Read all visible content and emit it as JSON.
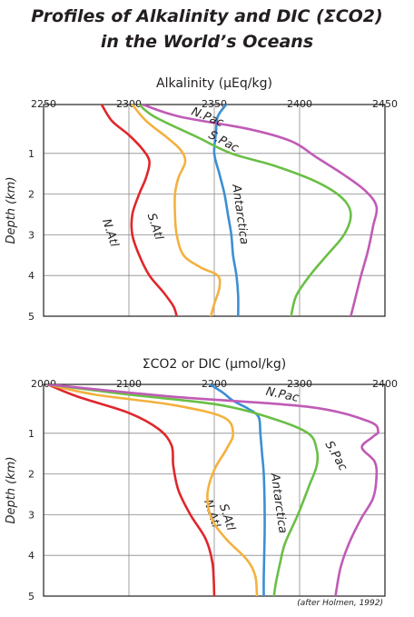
{
  "title_line1": "Profiles of Alkalinity and DIC (ΣCO2)",
  "title_line2": "in the World’s Oceans",
  "credit": "(after Holmen, 1992)",
  "chart_data": [
    {
      "type": "line",
      "title": "Alkalinity (µEq/kg)",
      "xlabel": "Alkalinity (µEq/kg)",
      "ylabel": "Depth (km)",
      "xlim": [
        2250,
        2450
      ],
      "ylim": [
        0,
        5
      ],
      "x_axis_position": "top",
      "y_inverted": true,
      "grid": true,
      "xticks": [
        2250,
        2300,
        2350,
        2400,
        2450
      ],
      "yticks": [
        1,
        2,
        3,
        4,
        5
      ],
      "series": [
        {
          "name": "N.Atl",
          "color": "#e0262b",
          "points": [
            [
              2284,
              -0.2
            ],
            [
              2290,
              0.2
            ],
            [
              2300,
              0.55
            ],
            [
              2308,
              0.9
            ],
            [
              2312,
              1.2
            ],
            [
              2310,
              1.6
            ],
            [
              2306,
              2.0
            ],
            [
              2302,
              2.5
            ],
            [
              2302,
              3.0
            ],
            [
              2306,
              3.5
            ],
            [
              2312,
              4.0
            ],
            [
              2320,
              4.4
            ],
            [
              2326,
              4.75
            ],
            [
              2328,
              5.0
            ]
          ]
        },
        {
          "name": "S.Atl",
          "color": "#f3b13e",
          "points": [
            [
              2302,
              -0.2
            ],
            [
              2310,
              0.2
            ],
            [
              2322,
              0.6
            ],
            [
              2330,
              0.9
            ],
            [
              2333,
              1.2
            ],
            [
              2329,
              1.6
            ],
            [
              2327,
              2.0
            ],
            [
              2327,
              2.5
            ],
            [
              2328,
              3.0
            ],
            [
              2332,
              3.5
            ],
            [
              2342,
              3.8
            ],
            [
              2352,
              4.0
            ],
            [
              2353,
              4.3
            ],
            [
              2350,
              4.7
            ],
            [
              2348,
              5.0
            ]
          ]
        },
        {
          "name": "Antarctica",
          "color": "#3b8fd4",
          "points": [
            [
              2357,
              -0.2
            ],
            [
              2352,
              0.1
            ],
            [
              2351,
              0.5
            ],
            [
              2350,
              1.0
            ],
            [
              2353,
              1.5
            ],
            [
              2356,
              2.0
            ],
            [
              2358,
              2.5
            ],
            [
              2360,
              3.0
            ],
            [
              2361,
              3.5
            ],
            [
              2363,
              4.0
            ],
            [
              2364,
              4.5
            ],
            [
              2364,
              5.0
            ]
          ]
        },
        {
          "name": "S.Pac",
          "color": "#6abf45",
          "points": [
            [
              2306,
              -0.2
            ],
            [
              2315,
              0.1
            ],
            [
              2340,
              0.6
            ],
            [
              2360,
              1.0
            ],
            [
              2385,
              1.3
            ],
            [
              2410,
              1.7
            ],
            [
              2425,
              2.1
            ],
            [
              2430,
              2.5
            ],
            [
              2426,
              3.0
            ],
            [
              2416,
              3.5
            ],
            [
              2406,
              4.0
            ],
            [
              2398,
              4.5
            ],
            [
              2395,
              5.0
            ]
          ]
        },
        {
          "name": "N.Pac",
          "color": "#c05bb6",
          "points": [
            [
              2308,
              -0.2
            ],
            [
              2330,
              0.1
            ],
            [
              2370,
              0.4
            ],
            [
              2395,
              0.7
            ],
            [
              2410,
              1.1
            ],
            [
              2425,
              1.5
            ],
            [
              2438,
              1.9
            ],
            [
              2445,
              2.3
            ],
            [
              2443,
              2.8
            ],
            [
              2440,
              3.4
            ],
            [
              2436,
              4.0
            ],
            [
              2433,
              4.5
            ],
            [
              2430,
              5.0
            ]
          ]
        }
      ]
    },
    {
      "type": "line",
      "title": "ΣCO2 or DIC (µmol/kg)",
      "xlabel": "ΣCO2 or DIC (µmol/kg)",
      "ylabel": "Depth (km)",
      "xlim": [
        2000,
        2400
      ],
      "ylim": [
        0,
        5
      ],
      "x_axis_position": "top",
      "y_inverted": true,
      "grid": true,
      "xticks": [
        2000,
        2100,
        2200,
        2300,
        2400
      ],
      "yticks": [
        1,
        2,
        3,
        4,
        5
      ],
      "series": [
        {
          "name": "N.Atl",
          "color": "#e0262b",
          "points": [
            [
              2005,
              -0.2
            ],
            [
              2040,
              0.1
            ],
            [
              2100,
              0.5
            ],
            [
              2135,
              0.9
            ],
            [
              2150,
              1.3
            ],
            [
              2152,
              1.8
            ],
            [
              2158,
              2.4
            ],
            [
              2172,
              3.0
            ],
            [
              2190,
              3.6
            ],
            [
              2198,
              4.2
            ],
            [
              2200,
              5.0
            ]
          ]
        },
        {
          "name": "S.Atl",
          "color": "#f3b13e",
          "points": [
            [
              2005,
              -0.2
            ],
            [
              2060,
              0.05
            ],
            [
              2150,
              0.3
            ],
            [
              2210,
              0.6
            ],
            [
              2222,
              1.0
            ],
            [
              2214,
              1.4
            ],
            [
              2200,
              1.9
            ],
            [
              2192,
              2.5
            ],
            [
              2197,
              3.1
            ],
            [
              2214,
              3.6
            ],
            [
              2238,
              4.1
            ],
            [
              2248,
              4.5
            ],
            [
              2250,
              5.0
            ]
          ]
        },
        {
          "name": "Antarctica",
          "color": "#3b8fd4",
          "points": [
            [
              2195,
              -0.2
            ],
            [
              2210,
              0.0
            ],
            [
              2222,
              0.2
            ],
            [
              2240,
              0.4
            ],
            [
              2252,
              0.6
            ],
            [
              2254,
              1.0
            ],
            [
              2256,
              1.5
            ],
            [
              2258,
              2.0
            ],
            [
              2259,
              2.8
            ],
            [
              2259,
              3.5
            ],
            [
              2258,
              4.5
            ],
            [
              2258,
              5.0
            ]
          ]
        },
        {
          "name": "S.Pac",
          "color": "#6abf45",
          "points": [
            [
              2005,
              -0.2
            ],
            [
              2100,
              0.05
            ],
            [
              2205,
              0.3
            ],
            [
              2270,
              0.65
            ],
            [
              2310,
              1.0
            ],
            [
              2320,
              1.4
            ],
            [
              2320,
              1.8
            ],
            [
              2311,
              2.3
            ],
            [
              2298,
              3.0
            ],
            [
              2283,
              3.7
            ],
            [
              2277,
              4.2
            ],
            [
              2272,
              4.7
            ],
            [
              2270,
              5.0
            ]
          ]
        },
        {
          "name": "N.Pac",
          "color": "#c05bb6",
          "points": [
            [
              2005,
              -0.2
            ],
            [
              2150,
              0.1
            ],
            [
              2310,
              0.35
            ],
            [
              2380,
              0.7
            ],
            [
              2392,
              0.95
            ],
            [
              2385,
              1.1
            ],
            [
              2373,
              1.35
            ],
            [
              2388,
              1.7
            ],
            [
              2390,
              2.1
            ],
            [
              2386,
              2.6
            ],
            [
              2372,
              3.1
            ],
            [
              2358,
              3.7
            ],
            [
              2348,
              4.3
            ],
            [
              2342,
              5.0
            ]
          ]
        }
      ]
    }
  ]
}
